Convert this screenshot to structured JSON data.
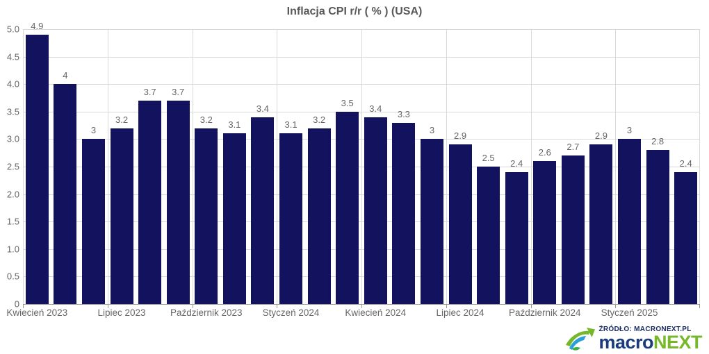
{
  "chart_data": {
    "type": "bar",
    "title": "Inflacja CPI r/r ( % ) (USA)",
    "values": [
      4.9,
      4,
      3,
      3.2,
      3.7,
      3.7,
      3.2,
      3.1,
      3.4,
      3.1,
      3.2,
      3.5,
      3.4,
      3.3,
      3,
      2.9,
      2.5,
      2.4,
      2.6,
      2.7,
      2.9,
      3,
      2.8,
      2.4
    ],
    "bar_labels": [
      "4.9",
      "4",
      "3",
      "3.2",
      "3.7",
      "3.7",
      "3.2",
      "3.1",
      "3.4",
      "3.1",
      "3.2",
      "3.5",
      "3.4",
      "3.3",
      "3",
      "2.9",
      "2.5",
      "2.4",
      "2.6",
      "2.7",
      "2.9",
      "3",
      "2.8",
      "2.4"
    ],
    "x_tick_labels": [
      "Kwiecień 2023",
      "Lipiec 2023",
      "Październik 2023",
      "Styczeń 2024",
      "Kwiecień 2024",
      "Lipiec 2024",
      "Październik 2024",
      "Styczeń 2025"
    ],
    "x_tick_positions": [
      0,
      3,
      6,
      9,
      12,
      15,
      18,
      21
    ],
    "y_ticks": [
      "0",
      "0.5",
      "1.0",
      "1.5",
      "2.0",
      "2.5",
      "3.0",
      "3.5",
      "4.0",
      "4.5",
      "5.0"
    ],
    "ylim": [
      0,
      5
    ],
    "grid": true,
    "legend": "none",
    "group_size": 3,
    "bar_color": "#12125e"
  },
  "footer": {
    "source_label": "ŹRÓDŁO: MACRONEXT.PL",
    "brand": {
      "part1": "macro",
      "part2": "NEXT"
    }
  },
  "colors": {
    "bar": "#12125e",
    "grid": "#d9d9d9",
    "axis": "#9a9a9a",
    "tick_label": "#666666",
    "title": "#595959",
    "brand_navy": "#1b3c7c",
    "brand_green": "#76b82a"
  }
}
